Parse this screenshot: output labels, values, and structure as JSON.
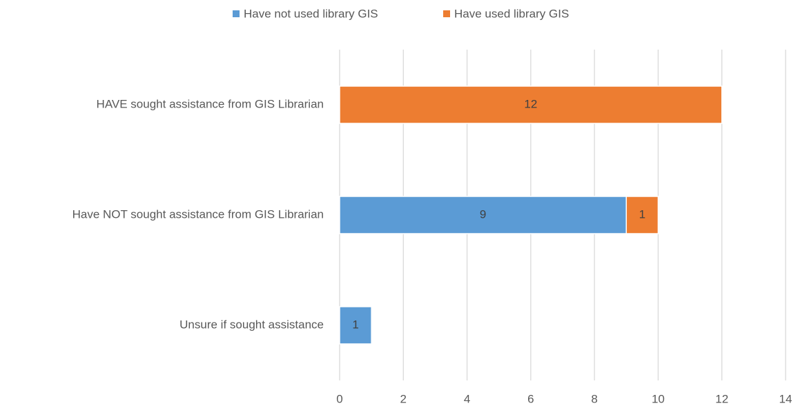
{
  "chart_data": {
    "type": "stacked-barh",
    "categories": [
      "HAVE sought assistance from GIS Librarian",
      "Have NOT sought assistance from GIS Librarian",
      "Unsure if sought assistance"
    ],
    "series": [
      {
        "name": "Have not used library GIS",
        "color": "#5b9bd5",
        "values": [
          null,
          9,
          1
        ]
      },
      {
        "name": "Have used library GIS",
        "color": "#ed7d31",
        "values": [
          12,
          1,
          null
        ]
      }
    ],
    "xlim": [
      0,
      14
    ],
    "xticks": [
      0,
      2,
      4,
      6,
      8,
      10,
      12,
      14
    ],
    "grid": true,
    "legend": "top"
  }
}
